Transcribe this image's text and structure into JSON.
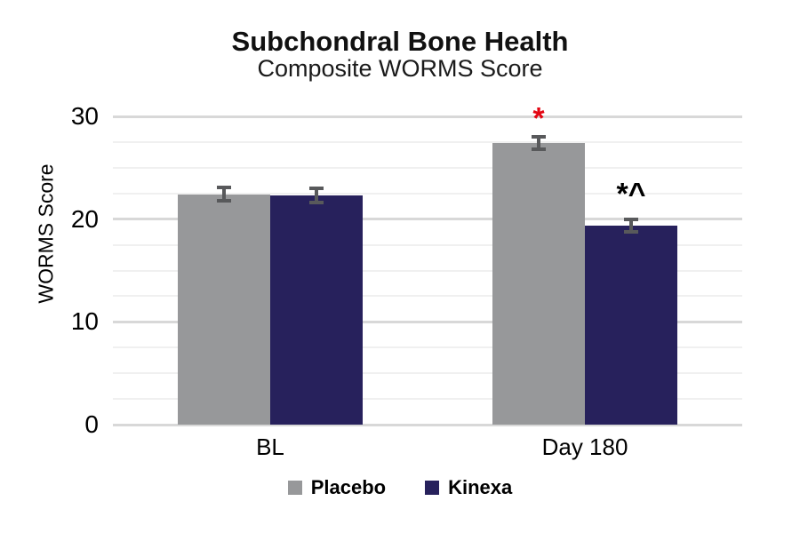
{
  "chart_data": {
    "type": "bar",
    "title": "Subchondral Bone Health",
    "subtitle": "Composite WORMS Score",
    "ylabel": "WORMS Score",
    "xlabel": "",
    "categories": [
      "BL",
      "Day 180"
    ],
    "series": [
      {
        "name": "Placebo",
        "color": "#97989a",
        "values": [
          22.4,
          27.4
        ],
        "errors": [
          0.65,
          0.6
        ]
      },
      {
        "name": "Kinexa",
        "color": "#27215c",
        "values": [
          22.3,
          19.4
        ],
        "errors": [
          0.7,
          0.6
        ]
      }
    ],
    "ylim": [
      0,
      30
    ],
    "yticks": [
      0,
      10,
      20,
      30
    ],
    "y_minor_step": 2.5,
    "y_major_step": 10,
    "grid": true,
    "legend_position": "bottom",
    "error_bar_color": "#58595b",
    "annotations": [
      {
        "text": "*",
        "color": "#e30613",
        "category": 1,
        "series": 0,
        "y": 29.7
      },
      {
        "text": "*^",
        "color": "#000000",
        "category": 1,
        "series": 1,
        "y": 22.4
      }
    ]
  }
}
